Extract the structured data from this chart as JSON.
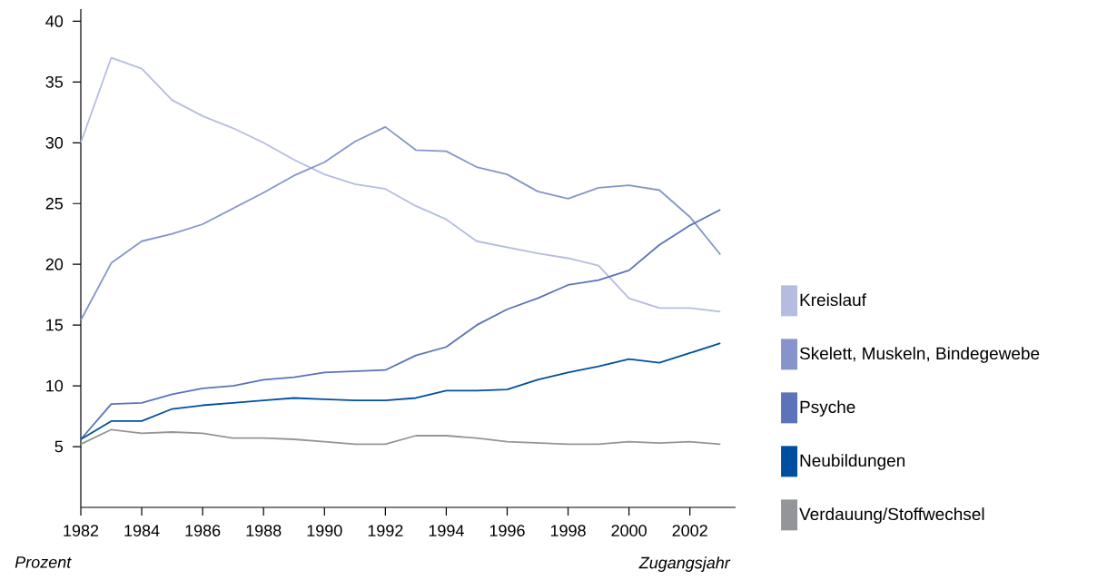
{
  "chart_data": {
    "type": "line",
    "xlabel": "Zugangsjahr",
    "ylabel": "Prozent",
    "x": [
      1982,
      1983,
      1984,
      1985,
      1986,
      1987,
      1988,
      1989,
      1990,
      1991,
      1992,
      1993,
      1994,
      1995,
      1996,
      1997,
      1998,
      1999,
      2000,
      2001,
      2002,
      2003
    ],
    "series": [
      {
        "name": "Kreislauf",
        "color": "#b4bde0",
        "values": [
          30.0,
          37.0,
          36.1,
          33.5,
          32.2,
          31.2,
          30.0,
          28.6,
          27.4,
          26.6,
          26.2,
          24.8,
          23.7,
          21.9,
          21.4,
          20.9,
          20.5,
          19.9,
          17.2,
          16.4,
          16.4,
          16.1
        ]
      },
      {
        "name": "Skelett, Muskeln, Bindegewebe",
        "color": "#8595cc",
        "values": [
          15.4,
          20.1,
          21.9,
          22.5,
          23.3,
          24.6,
          25.9,
          27.3,
          28.4,
          30.1,
          31.3,
          29.4,
          29.3,
          28.0,
          27.4,
          26.0,
          25.4,
          26.3,
          26.5,
          26.1,
          23.9,
          20.8
        ]
      },
      {
        "name": "Psyche",
        "color": "#5b73b8",
        "values": [
          5.6,
          8.5,
          8.6,
          9.3,
          9.8,
          10.0,
          10.5,
          10.7,
          11.1,
          11.2,
          11.3,
          12.5,
          13.2,
          15.0,
          16.3,
          17.2,
          18.3,
          18.7,
          19.5,
          21.6,
          23.2,
          24.5
        ]
      },
      {
        "name": "Neubildungen",
        "color": "#004f9f",
        "values": [
          5.6,
          7.1,
          7.1,
          8.1,
          8.4,
          8.6,
          8.8,
          9.0,
          8.9,
          8.8,
          8.8,
          9.0,
          9.6,
          9.6,
          9.7,
          10.5,
          11.1,
          11.6,
          12.2,
          11.9,
          12.7,
          13.5
        ]
      },
      {
        "name": "Verdauung/Stoffwechsel",
        "color": "#939598",
        "values": [
          5.2,
          6.4,
          6.1,
          6.2,
          6.1,
          5.7,
          5.7,
          5.6,
          5.4,
          5.2,
          5.2,
          5.9,
          5.9,
          5.7,
          5.4,
          5.3,
          5.2,
          5.2,
          5.4,
          5.3,
          5.4,
          5.2
        ]
      }
    ],
    "xlim": [
      1982,
      2003.5
    ],
    "ylim": [
      0,
      41
    ],
    "xticks": [
      1982,
      1984,
      1986,
      1988,
      1990,
      1992,
      1994,
      1996,
      1998,
      2000,
      2002
    ],
    "yticks": [
      5,
      10,
      15,
      20,
      25,
      30,
      35,
      40
    ],
    "legend": "right",
    "marker": "none",
    "line_style": "solid"
  }
}
